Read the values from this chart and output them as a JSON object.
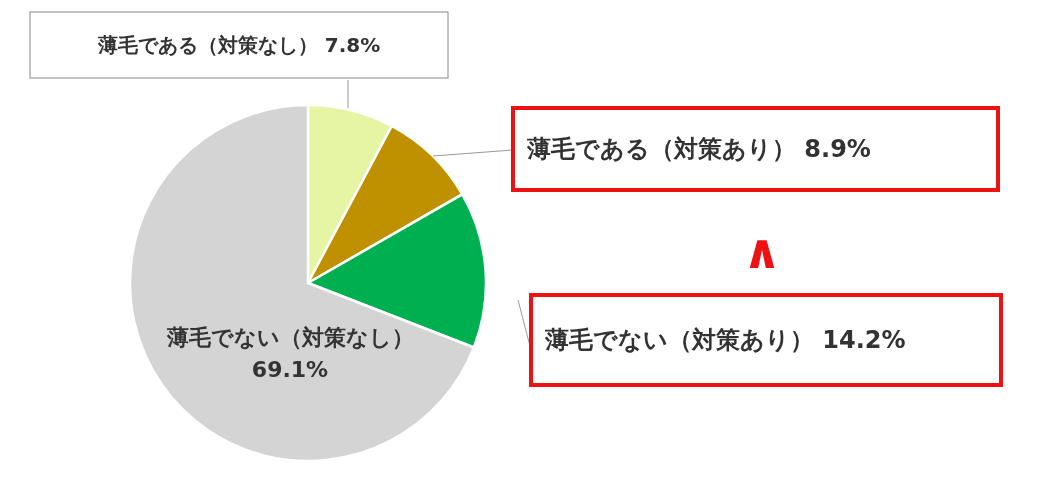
{
  "chart_data": {
    "type": "pie",
    "categories": [
      "薄毛である（対策なし）",
      "薄毛である（対策あり）",
      "薄毛でない（対策あり）",
      "薄毛でない（対策なし）"
    ],
    "values": [
      7.8,
      8.9,
      14.2,
      69.1
    ],
    "colors": [
      "#e6f5a3",
      "#bf9000",
      "#00b050",
      "#d4d4d4"
    ],
    "value_labels": [
      "7.8%",
      "8.9%",
      "14.2%",
      "69.1%"
    ],
    "annotations": [
      "∧"
    ]
  }
}
